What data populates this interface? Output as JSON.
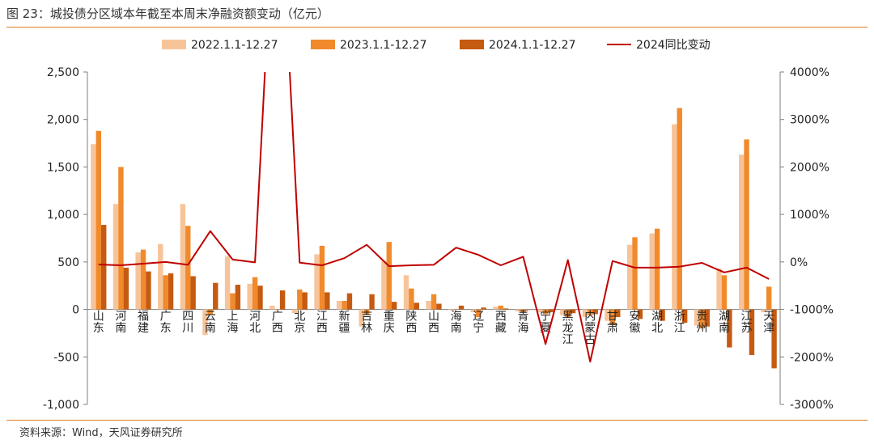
{
  "title": "图 23：城投债分区域本年截至本周末净融资额变动（亿元）",
  "source": "资料来源：Wind，天风证券研究所",
  "colors": {
    "s2022": "#f7c49a",
    "s2023": "#f08a2c",
    "s2024": "#c55a11",
    "line": "#c00000",
    "axis": "#7f7f7f",
    "text": "#222222"
  },
  "chart_data": {
    "type": "bar",
    "title": "城投债分区域本年截至本周末净融资额变动（亿元）",
    "categories": [
      "山东",
      "河南",
      "福建",
      "广东",
      "四川",
      "云南",
      "上海",
      "河北",
      "广西",
      "北京",
      "江西",
      "新疆",
      "吉林",
      "重庆",
      "陕西",
      "山西",
      "海南",
      "辽宁",
      "西藏",
      "青海",
      "宁夏",
      "黑龙江",
      "内蒙古",
      "甘肃",
      "安徽",
      "湖北",
      "浙江",
      "贵州",
      "湖南",
      "江苏",
      "天津"
    ],
    "series": [
      {
        "name": "2022.1.1-12.27",
        "axis": "left",
        "values": [
          1740,
          1110,
          600,
          690,
          1110,
          -270,
          560,
          270,
          40,
          -40,
          580,
          90,
          -180,
          510,
          360,
          90,
          0,
          -30,
          30,
          -20,
          -30,
          -60,
          -80,
          -120,
          680,
          800,
          1950,
          -170,
          430,
          1630,
          -30
        ]
      },
      {
        "name": "2023.1.1-12.27",
        "axis": "left",
        "values": [
          1880,
          1500,
          630,
          360,
          880,
          -50,
          170,
          340,
          0,
          210,
          670,
          90,
          -60,
          710,
          220,
          160,
          0,
          -80,
          40,
          -30,
          -50,
          -80,
          -60,
          -160,
          760,
          850,
          2120,
          -200,
          360,
          1790,
          240
        ]
      },
      {
        "name": "2024.1.1-12.27",
        "axis": "left",
        "values": [
          890,
          440,
          400,
          380,
          350,
          280,
          260,
          250,
          200,
          180,
          180,
          170,
          160,
          80,
          70,
          60,
          40,
          20,
          10,
          0,
          -30,
          -40,
          -50,
          -80,
          -100,
          -120,
          -140,
          -180,
          -400,
          -480,
          -620
        ]
      },
      {
        "name": "2024同比变动",
        "axis": "right",
        "type": "line",
        "values": [
          -53,
          -70,
          -37,
          0,
          -60,
          650,
          50,
          -10,
          null,
          -15,
          -73,
          80,
          360,
          -90,
          -70,
          -60,
          300,
          150,
          -70,
          110,
          -1730,
          40,
          -2100,
          20,
          -120,
          -120,
          -100,
          -20,
          -220,
          -120,
          -360
        ]
      }
    ],
    "y_left": {
      "min": -1000,
      "max": 2500,
      "ticks": [
        -1000,
        -500,
        0,
        500,
        1000,
        1500,
        2000,
        2500
      ],
      "tick_labels": [
        "-1,000",
        "-500",
        "0",
        "500",
        "1,000",
        "1,500",
        "2,000",
        "2,500"
      ]
    },
    "y_right": {
      "min": -3000,
      "max": 4000,
      "ticks": [
        -3000,
        -2000,
        -1000,
        0,
        1000,
        2000,
        3000,
        4000
      ],
      "tick_labels": [
        "-3000%",
        "-2000%",
        "-1000%",
        "0%",
        "1000%",
        "2000%",
        "3000%",
        "4000%"
      ]
    },
    "line_offchart_peak": {
      "category": "广西",
      "note": "exceeds 4000%"
    },
    "legend_position": "top",
    "grid": false
  }
}
